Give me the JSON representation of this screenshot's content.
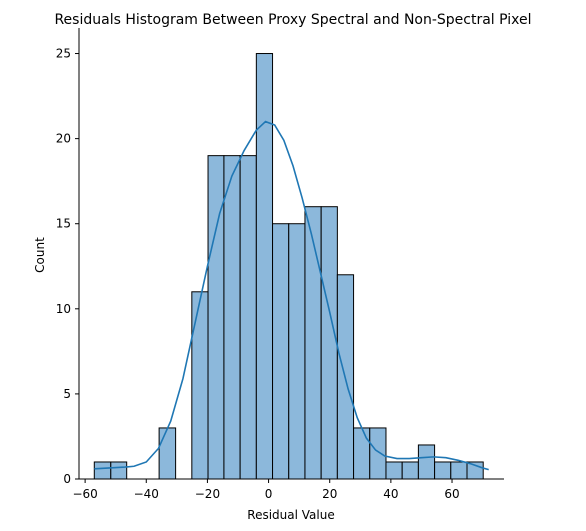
{
  "chart_data": {
    "type": "bar",
    "title": "Residuals Histogram Between Proxy Spectral and Non-Spectral Pixel",
    "xlabel": "Residual Value",
    "ylabel": "Count",
    "xlim": [
      -62.0,
      77.0
    ],
    "ylim": [
      0,
      26.5
    ],
    "x_ticks": [
      -60,
      -40,
      -20,
      0,
      20,
      40,
      60
    ],
    "y_ticks": [
      0,
      5,
      10,
      15,
      20,
      25
    ],
    "grid": false,
    "legend": "none",
    "colors": {
      "bar_fill": "#8cb8db",
      "bar_edge": "#000000",
      "kde_line": "#1f77b4"
    },
    "bins": [
      {
        "x0": -57.0,
        "x1": -51.6,
        "count": 1
      },
      {
        "x0": -51.6,
        "x1": -46.4,
        "count": 1
      },
      {
        "x0": -46.4,
        "x1": -41.1,
        "count": 0
      },
      {
        "x0": -41.1,
        "x1": -35.8,
        "count": 0
      },
      {
        "x0": -35.8,
        "x1": -30.4,
        "count": 3
      },
      {
        "x0": -30.4,
        "x1": -25.1,
        "count": 0
      },
      {
        "x0": -25.1,
        "x1": -19.8,
        "count": 11
      },
      {
        "x0": -19.8,
        "x1": -14.6,
        "count": 19
      },
      {
        "x0": -14.6,
        "x1": -9.3,
        "count": 19
      },
      {
        "x0": -9.3,
        "x1": -4.0,
        "count": 19
      },
      {
        "x0": -4.0,
        "x1": 1.3,
        "count": 25
      },
      {
        "x0": 1.3,
        "x1": 6.6,
        "count": 15
      },
      {
        "x0": 6.6,
        "x1": 11.9,
        "count": 15
      },
      {
        "x0": 11.9,
        "x1": 17.2,
        "count": 16
      },
      {
        "x0": 17.2,
        "x1": 22.5,
        "count": 16
      },
      {
        "x0": 22.5,
        "x1": 27.8,
        "count": 12
      },
      {
        "x0": 27.8,
        "x1": 33.1,
        "count": 3
      },
      {
        "x0": 33.1,
        "x1": 38.4,
        "count": 3
      },
      {
        "x0": 38.4,
        "x1": 43.7,
        "count": 1
      },
      {
        "x0": 43.7,
        "x1": 49.0,
        "count": 1
      },
      {
        "x0": 49.0,
        "x1": 54.3,
        "count": 2
      },
      {
        "x0": 54.3,
        "x1": 59.6,
        "count": 1
      },
      {
        "x0": 59.6,
        "x1": 64.9,
        "count": 1
      },
      {
        "x0": 64.9,
        "x1": 70.2,
        "count": 1
      }
    ],
    "kde": [
      [
        -57,
        0.6
      ],
      [
        -52,
        0.65
      ],
      [
        -47,
        0.7
      ],
      [
        -44,
        0.75
      ],
      [
        -40,
        1.0
      ],
      [
        -36,
        1.8
      ],
      [
        -32,
        3.4
      ],
      [
        -28,
        5.9
      ],
      [
        -24,
        9.2
      ],
      [
        -20,
        12.5
      ],
      [
        -16,
        15.6
      ],
      [
        -12,
        17.8
      ],
      [
        -8,
        19.3
      ],
      [
        -4,
        20.5
      ],
      [
        -1,
        21.0
      ],
      [
        2,
        20.8
      ],
      [
        5,
        19.9
      ],
      [
        8,
        18.4
      ],
      [
        11,
        16.5
      ],
      [
        14,
        14.4
      ],
      [
        17,
        12.1
      ],
      [
        20,
        9.8
      ],
      [
        23,
        7.4
      ],
      [
        26,
        5.3
      ],
      [
        29,
        3.6
      ],
      [
        32,
        2.4
      ],
      [
        35,
        1.7
      ],
      [
        38,
        1.35
      ],
      [
        42,
        1.2
      ],
      [
        46,
        1.2
      ],
      [
        50,
        1.25
      ],
      [
        54,
        1.3
      ],
      [
        58,
        1.25
      ],
      [
        62,
        1.1
      ],
      [
        66,
        0.9
      ],
      [
        70,
        0.65
      ],
      [
        72,
        0.55
      ]
    ]
  }
}
